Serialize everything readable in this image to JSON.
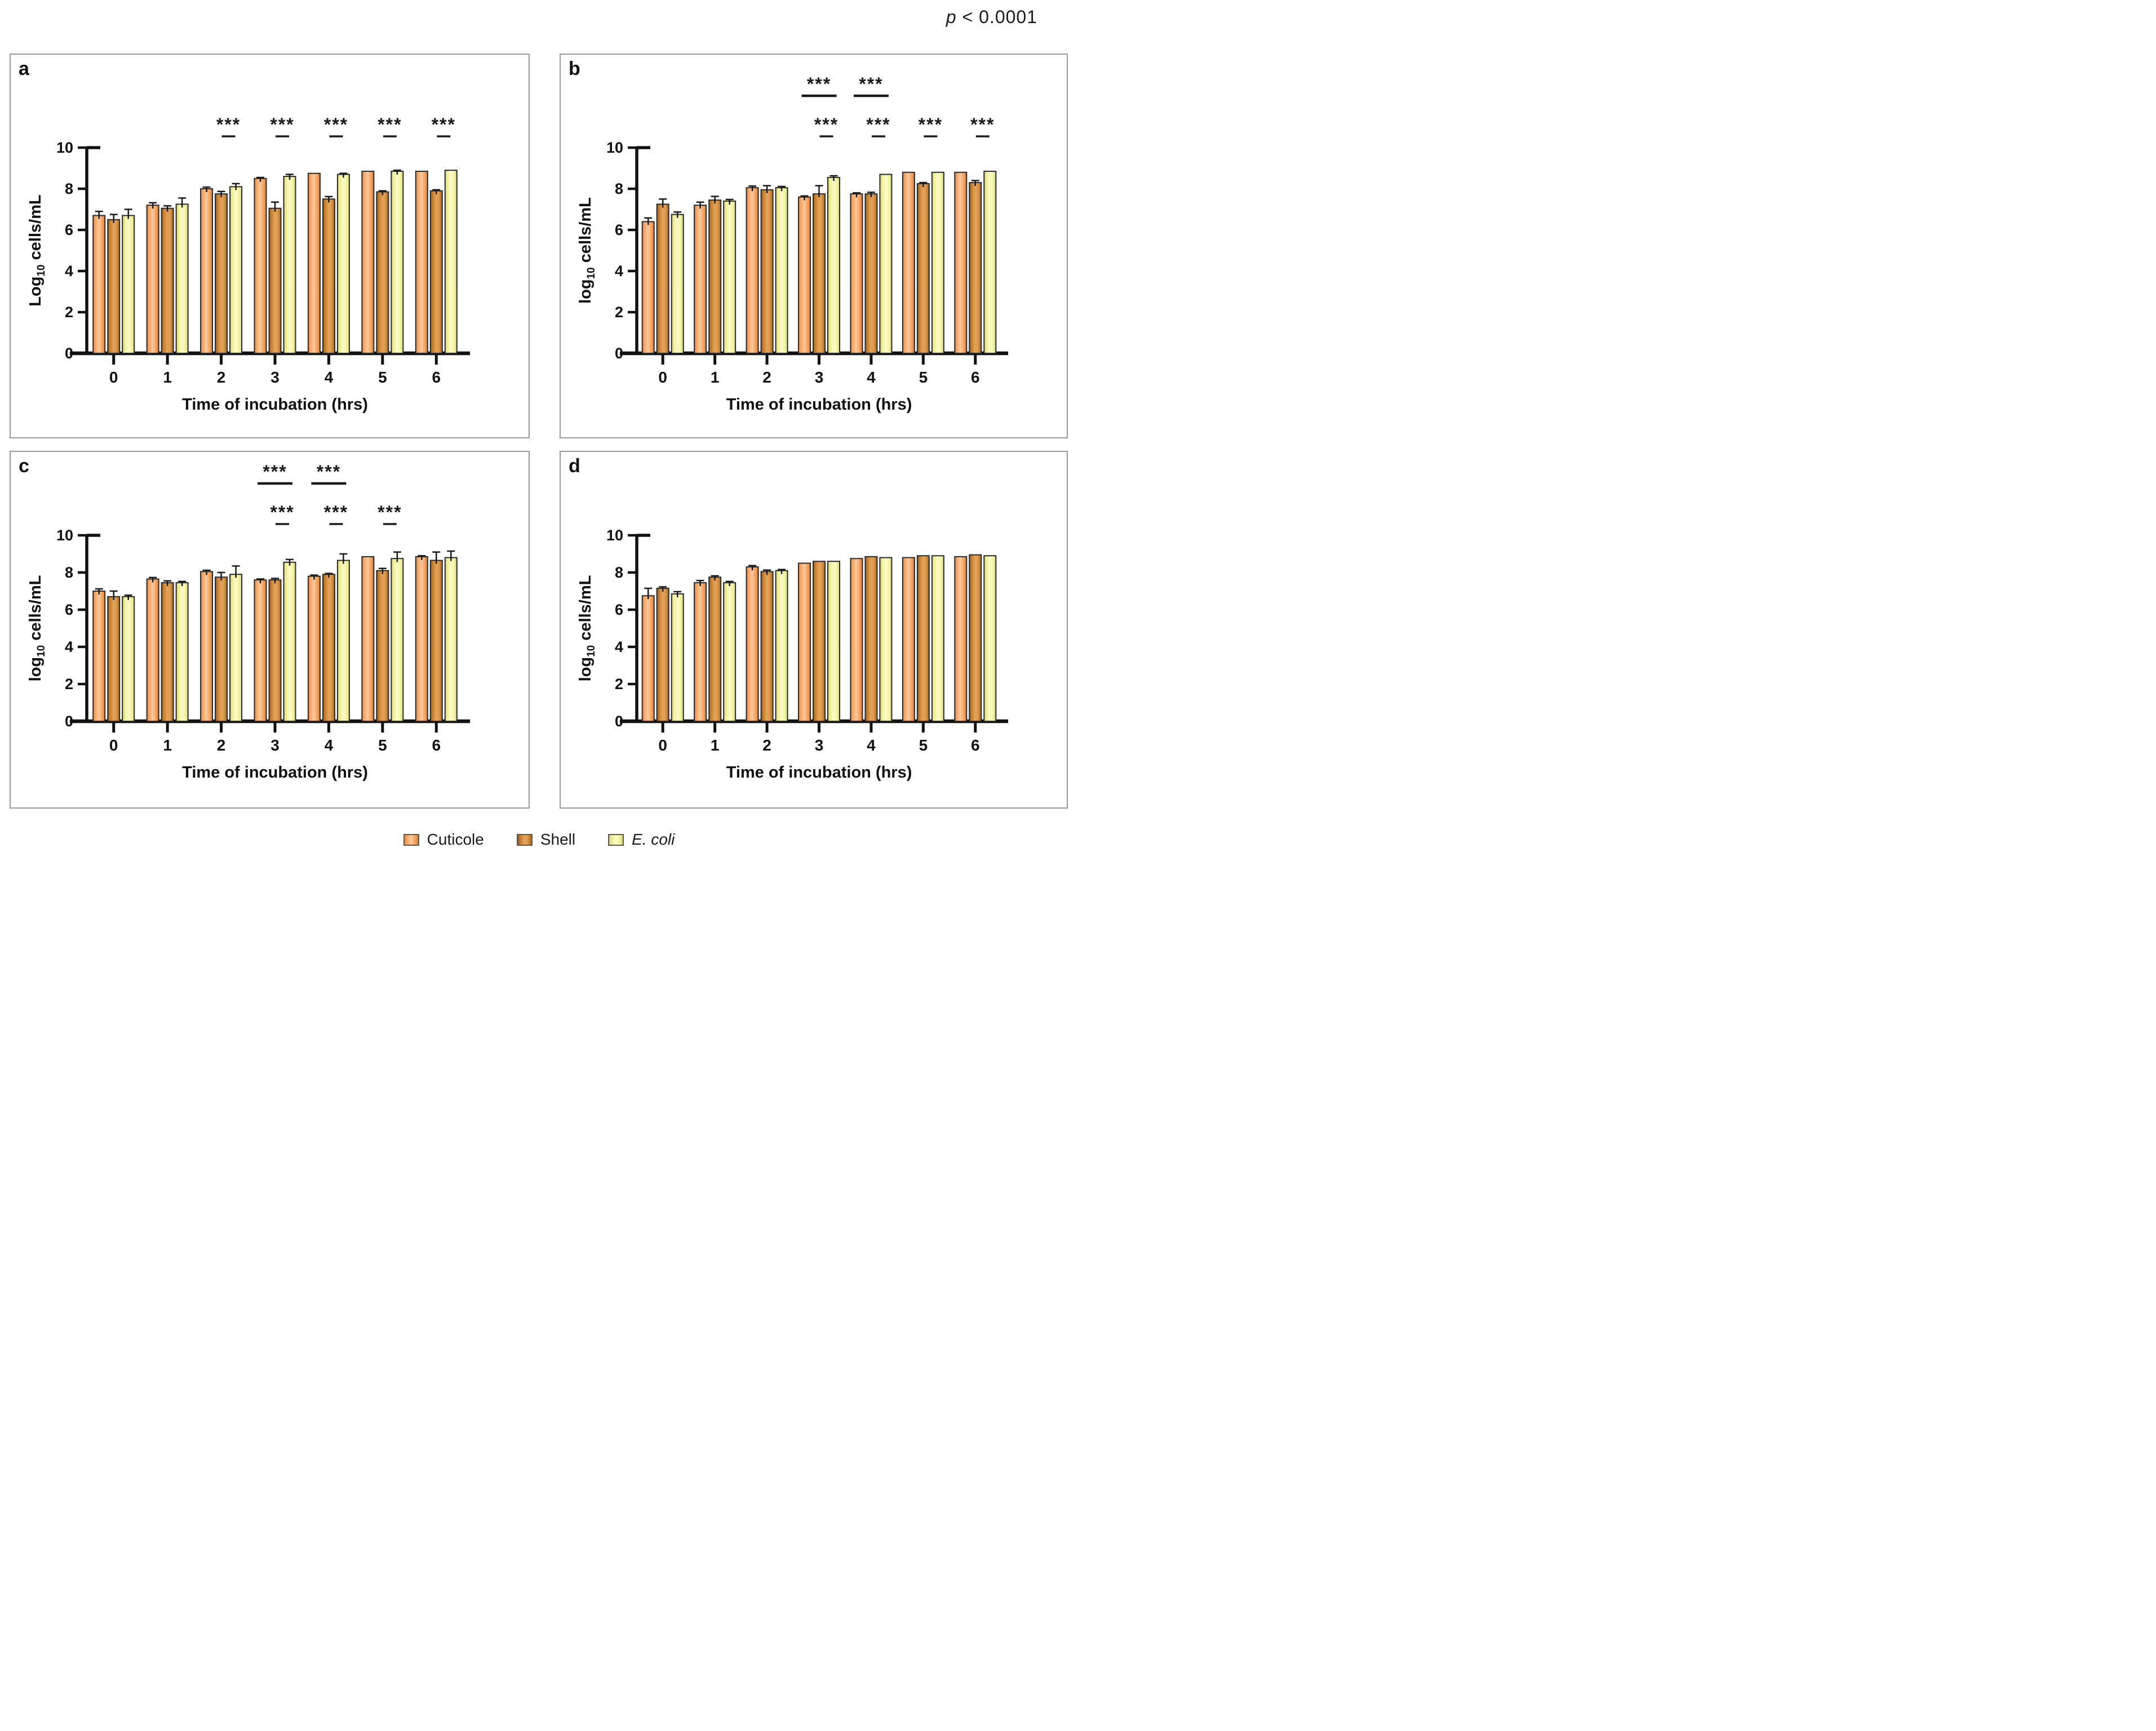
{
  "annotation": {
    "p_italic": "p",
    "p_rest": " < 0.0001"
  },
  "sig_label": "***",
  "colors": {
    "cuticole": "#f5a468",
    "shell": "#d98f3d",
    "ecoli": "#f6f6a0",
    "bar_outline": "#2b2b2b",
    "axis": "#111111",
    "panel_border": "#9a9a9a",
    "sig_marks": "#1a1a1a"
  },
  "legend": {
    "position": "bottom-center",
    "items": [
      {
        "label": "Cuticole",
        "key": "cuticole",
        "italic": false
      },
      {
        "label": "Shell",
        "key": "shell",
        "italic": false
      },
      {
        "label": "E. coli",
        "key": "ecoli",
        "italic": true
      }
    ]
  },
  "chart_data": [
    {
      "type": "bar",
      "panel": "a",
      "ylabel_prefix": "Log",
      "ylabel_sub": "10",
      "ylabel_rest": " cells/mL",
      "xlabel": "Time of incubation (hrs)",
      "categories": [
        "0",
        "1",
        "2",
        "3",
        "4",
        "5",
        "6"
      ],
      "ylim": [
        0,
        10
      ],
      "yticks": [
        "0",
        "2",
        "4",
        "6",
        "8",
        "10"
      ],
      "grid": false,
      "series": [
        {
          "name": "Cuticole",
          "values": [
            6.7,
            7.2,
            8.0,
            8.5,
            8.75,
            8.85,
            8.85
          ],
          "errors": [
            0.2,
            0.12,
            0.08,
            0.05,
            0.04,
            0.03,
            0.03
          ]
        },
        {
          "name": "Shell",
          "values": [
            6.5,
            7.05,
            7.75,
            7.05,
            7.5,
            7.85,
            7.9
          ],
          "errors": [
            0.25,
            0.12,
            0.12,
            0.3,
            0.12,
            0.05,
            0.05
          ]
        },
        {
          "name": "E. coli",
          "values": [
            6.7,
            7.25,
            8.1,
            8.6,
            8.7,
            8.85,
            8.9
          ],
          "errors": [
            0.3,
            0.3,
            0.15,
            0.1,
            0.05,
            0.05,
            0.04
          ]
        }
      ],
      "significance": [
        {
          "time": "2",
          "rows": [
            "low"
          ]
        },
        {
          "time": "3",
          "rows": [
            "low"
          ]
        },
        {
          "time": "4",
          "rows": [
            "low"
          ]
        },
        {
          "time": "5",
          "rows": [
            "low"
          ]
        },
        {
          "time": "6",
          "rows": [
            "low"
          ]
        }
      ]
    },
    {
      "type": "bar",
      "panel": "b",
      "ylabel_prefix": "log",
      "ylabel_sub": "10",
      "ylabel_rest": " cells/mL",
      "xlabel": "Time of incubation (hrs)",
      "categories": [
        "0",
        "1",
        "2",
        "3",
        "4",
        "5",
        "6"
      ],
      "ylim": [
        0,
        10
      ],
      "yticks": [
        "0",
        "2",
        "4",
        "6",
        "8",
        "10"
      ],
      "grid": false,
      "series": [
        {
          "name": "Cuticole",
          "values": [
            6.4,
            7.2,
            8.05,
            7.6,
            7.75,
            8.8,
            8.8
          ],
          "errors": [
            0.18,
            0.15,
            0.08,
            0.05,
            0.05,
            0.03,
            0.03
          ]
        },
        {
          "name": "Shell",
          "values": [
            7.25,
            7.45,
            7.95,
            7.75,
            7.75,
            8.25,
            8.3
          ],
          "errors": [
            0.25,
            0.18,
            0.2,
            0.4,
            0.08,
            0.05,
            0.1
          ]
        },
        {
          "name": "E. coli",
          "values": [
            6.75,
            7.4,
            8.05,
            8.55,
            8.7,
            8.8,
            8.85
          ],
          "errors": [
            0.12,
            0.08,
            0.06,
            0.08,
            0.04,
            0.04,
            0.03
          ]
        }
      ],
      "significance": [
        {
          "time": "3",
          "rows": [
            "high",
            "low"
          ]
        },
        {
          "time": "4",
          "rows": [
            "high",
            "low"
          ]
        },
        {
          "time": "5",
          "rows": [
            "low"
          ]
        },
        {
          "time": "6",
          "rows": [
            "low"
          ]
        }
      ]
    },
    {
      "type": "bar",
      "panel": "c",
      "ylabel_prefix": "log",
      "ylabel_sub": "10",
      "ylabel_rest": " cells/mL",
      "xlabel": "Time of incubation (hrs)",
      "categories": [
        "0",
        "1",
        "2",
        "3",
        "4",
        "5",
        "6"
      ],
      "ylim": [
        0,
        10
      ],
      "yticks": [
        "0",
        "2",
        "4",
        "6",
        "8",
        "10"
      ],
      "grid": false,
      "series": [
        {
          "name": "Cuticole",
          "values": [
            7.0,
            7.65,
            8.05,
            7.6,
            7.8,
            8.85,
            8.85
          ],
          "errors": [
            0.12,
            0.08,
            0.07,
            0.05,
            0.06,
            0.04,
            0.05
          ]
        },
        {
          "name": "Shell",
          "values": [
            6.7,
            7.45,
            7.75,
            7.6,
            7.9,
            8.1,
            8.65
          ],
          "errors": [
            0.3,
            0.1,
            0.25,
            0.08,
            0.05,
            0.12,
            0.45
          ]
        },
        {
          "name": "E. coli",
          "values": [
            6.7,
            7.45,
            7.9,
            8.55,
            8.65,
            8.75,
            8.8
          ],
          "errors": [
            0.08,
            0.07,
            0.45,
            0.15,
            0.35,
            0.35,
            0.35
          ]
        }
      ],
      "significance": [
        {
          "time": "3",
          "rows": [
            "high",
            "low"
          ]
        },
        {
          "time": "4",
          "rows": [
            "high",
            "low"
          ]
        },
        {
          "time": "5",
          "rows": [
            "low"
          ]
        }
      ]
    },
    {
      "type": "bar",
      "panel": "d",
      "ylabel_prefix": "log",
      "ylabel_sub": "10",
      "ylabel_rest": " cells/mL",
      "xlabel": "Time of incubation (hrs)",
      "categories": [
        "0",
        "1",
        "2",
        "3",
        "4",
        "5",
        "6"
      ],
      "ylim": [
        0,
        10
      ],
      "yticks": [
        "0",
        "2",
        "4",
        "6",
        "8",
        "10"
      ],
      "grid": false,
      "series": [
        {
          "name": "Cuticole",
          "values": [
            6.75,
            7.45,
            8.3,
            8.5,
            8.75,
            8.8,
            8.85
          ],
          "errors": [
            0.4,
            0.12,
            0.07,
            0.04,
            0.03,
            0.03,
            0.03
          ]
        },
        {
          "name": "Shell",
          "values": [
            7.15,
            7.75,
            8.05,
            8.6,
            8.85,
            8.9,
            8.95
          ],
          "errors": [
            0.08,
            0.07,
            0.08,
            0.04,
            0.03,
            0.03,
            0.03
          ]
        },
        {
          "name": "E. coli",
          "values": [
            6.85,
            7.45,
            8.1,
            8.6,
            8.8,
            8.9,
            8.9
          ],
          "errors": [
            0.12,
            0.07,
            0.06,
            0.04,
            0.03,
            0.03,
            0.03
          ]
        }
      ],
      "significance": []
    }
  ]
}
